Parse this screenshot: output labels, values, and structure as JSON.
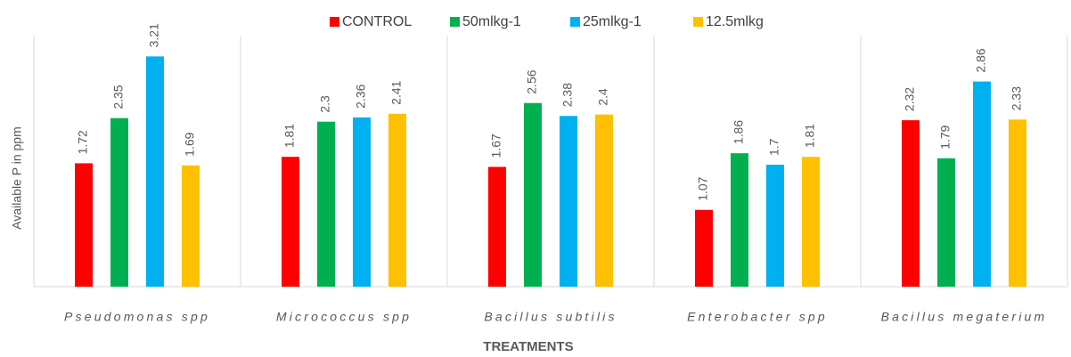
{
  "chart_data": {
    "type": "bar",
    "x_label": "TREATMENTS",
    "y_label": "Available P in ppm",
    "categories": [
      "Pseudomonas spp",
      "Micrococcus spp",
      "Bacillus subtilis",
      "Enterobacter spp",
      "Bacillus megaterium"
    ],
    "series": [
      {
        "name": "CONTROL",
        "color": "#ff0000",
        "values": [
          1.72,
          1.81,
          1.67,
          1.07,
          2.32
        ]
      },
      {
        "name": "50mlkg-1",
        "color": "#00b050",
        "values": [
          2.35,
          2.3,
          2.56,
          1.86,
          1.79
        ]
      },
      {
        "name": "25mlkg-1",
        "color": "#00b0f0",
        "values": [
          3.21,
          2.36,
          2.38,
          1.7,
          2.86
        ]
      },
      {
        "name": "12.5mlkg",
        "color": "#ffc000",
        "values": [
          1.69,
          2.41,
          2.4,
          1.81,
          2.33
        ]
      }
    ],
    "ylim": [
      0,
      3.5
    ],
    "legend": "top"
  }
}
